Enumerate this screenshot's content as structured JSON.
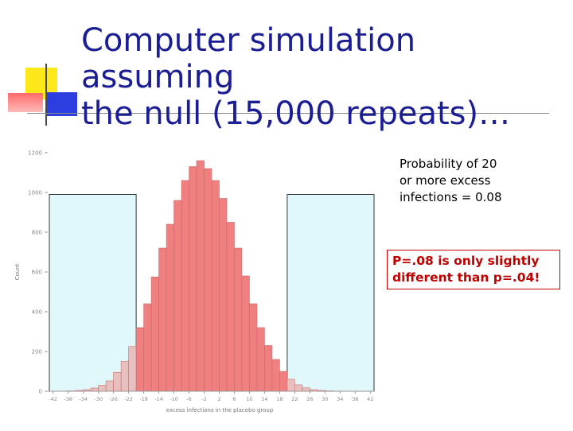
{
  "slide": {
    "title": "Computer simulation assuming\nthe null (15,000 repeats)…",
    "note_probability": "Probability of 20\nor more excess\ninfections = 0.08",
    "note_pvalue": "P=.08 is only slightly\ndifferent than p=.04!"
  },
  "colors": {
    "title": "#1a1d93",
    "bar_center": "#f08080",
    "bar_tail": "#e8c0c0",
    "tail_box_fill": "#e0f8fa",
    "note_red": "#c00000"
  },
  "chart_data": {
    "type": "bar",
    "title": "",
    "xlabel": "excess infections in the placebo group",
    "ylabel": "Count",
    "ylim": [
      0,
      1200
    ],
    "xlim": [
      -43,
      43
    ],
    "y_ticks": [
      0,
      200,
      400,
      600,
      800,
      1000,
      1200
    ],
    "y_tick_labels": [
      "0",
      "200",
      "400",
      "600",
      "800",
      "1000",
      "1200"
    ],
    "x_ticks": [
      -42,
      -38,
      -34,
      -30,
      -26,
      -22,
      -18,
      -14,
      -10,
      -6,
      -2,
      2,
      6,
      10,
      14,
      18,
      22,
      26,
      30,
      34,
      38,
      42
    ],
    "x_tick_labels": [
      "-42",
      "-38",
      "-34",
      "-30",
      "-26",
      "-22",
      "-18",
      "-14",
      "-10",
      "-6",
      "-2",
      "2",
      "6",
      "10",
      "14",
      "18",
      "22",
      "26",
      "30",
      "34",
      "38",
      "42"
    ],
    "bin_width": 2,
    "bin_centers": [
      -41,
      -39,
      -37,
      -35,
      -33,
      -31,
      -29,
      -27,
      -25,
      -23,
      -21,
      -19,
      -17,
      -15,
      -13,
      -11,
      -9,
      -7,
      -5,
      -3,
      -1,
      1,
      3,
      5,
      7,
      9,
      11,
      13,
      15,
      17,
      19,
      21,
      23,
      25,
      27,
      29,
      31,
      33,
      35,
      37,
      39,
      41
    ],
    "values": [
      0,
      1,
      2,
      4,
      8,
      16,
      30,
      52,
      95,
      150,
      225,
      320,
      440,
      575,
      720,
      840,
      960,
      1060,
      1130,
      1160,
      1120,
      1060,
      970,
      850,
      720,
      580,
      440,
      320,
      230,
      160,
      100,
      60,
      32,
      17,
      8,
      4,
      2,
      1,
      0,
      0,
      0,
      0
    ],
    "tail_threshold": 20,
    "tail_regions": [
      [
        -43,
        -20
      ],
      [
        20,
        43
      ]
    ],
    "annotation_probability": 0.08
  }
}
